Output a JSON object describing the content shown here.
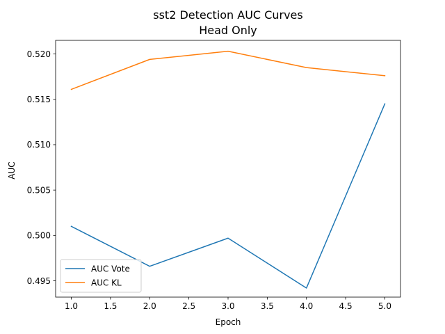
{
  "chart_data": {
    "type": "line",
    "title": "sst2 Detection AUC Curves",
    "subtitle": "Head Only",
    "xlabel": "Epoch",
    "ylabel": "AUC",
    "x": [
      1.0,
      2.0,
      3.0,
      4.0,
      5.0
    ],
    "series": [
      {
        "name": "AUC Vote",
        "color": "#1f77b4",
        "values": [
          0.501,
          0.4966,
          0.4997,
          0.4942,
          0.5145
        ]
      },
      {
        "name": "AUC KL",
        "color": "#ff7f0e",
        "values": [
          0.5161,
          0.5194,
          0.5203,
          0.5185,
          0.5176
        ]
      }
    ],
    "xlim": [
      0.8,
      5.2
    ],
    "ylim": [
      0.4932,
      0.5215
    ],
    "xticks": [
      "1.0",
      "1.5",
      "2.0",
      "2.5",
      "3.0",
      "3.5",
      "4.0",
      "4.5",
      "5.0"
    ],
    "xtick_values": [
      1.0,
      1.5,
      2.0,
      2.5,
      3.0,
      3.5,
      4.0,
      4.5,
      5.0
    ],
    "yticks": [
      "0.495",
      "0.500",
      "0.505",
      "0.510",
      "0.515",
      "0.520"
    ],
    "ytick_values": [
      0.495,
      0.5,
      0.505,
      0.51,
      0.515,
      0.52
    ],
    "grid": false,
    "legend_position": "lower-left"
  }
}
